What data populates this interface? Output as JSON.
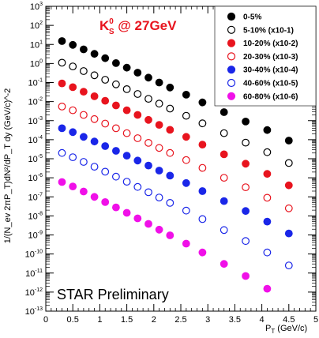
{
  "chart_data": {
    "type": "scatter",
    "title": "K0S @ 27GeV",
    "title_parts": {
      "main": "K",
      "sup": "0",
      "sub": "S",
      "rest": " @ 27GeV"
    },
    "annotation": "STAR Preliminary",
    "xlabel": {
      "main": "P",
      "sub": "T",
      "rest": " (GeV/c)"
    },
    "ylabel": "1/(N_ev 2πP_T)dN²/dP_T dy (GeV/c)^-2",
    "xlim": [
      0,
      5
    ],
    "ylim_log10": [
      -13,
      3
    ],
    "log_y": true,
    "legend_placement": "top-right",
    "x_ticks": [
      "0",
      "0.5",
      "1",
      "1.5",
      "2",
      "2.5",
      "3",
      "3.5",
      "4",
      "4.5",
      "5"
    ],
    "y_tick_exponents": [
      "3",
      "2",
      "1",
      "0",
      "-1",
      "-2",
      "-3",
      "-4",
      "-5",
      "-6",
      "-7",
      "-8",
      "-9",
      "-10",
      "-11",
      "-12",
      "-13"
    ],
    "series": [
      {
        "name": "0-5%",
        "color": "#000000",
        "filled": true,
        "x": [
          0.3,
          0.5,
          0.7,
          0.9,
          1.1,
          1.3,
          1.5,
          1.7,
          1.9,
          2.1,
          2.3,
          2.6,
          2.9,
          3.3,
          3.7,
          4.1,
          4.5
        ],
        "y": [
          15,
          9.5,
          5.5,
          3.2,
          1.9,
          1.05,
          0.6,
          0.33,
          0.18,
          0.1,
          0.055,
          0.023,
          0.009,
          0.0028,
          0.0009,
          0.00032,
          9e-05
        ]
      },
      {
        "name": "5-10% (x10-1)",
        "color": "#000000",
        "filled": false,
        "x": [
          0.3,
          0.5,
          0.7,
          0.9,
          1.1,
          1.3,
          1.5,
          1.7,
          1.9,
          2.1,
          2.3,
          2.6,
          2.9,
          3.3,
          3.7,
          4.1,
          4.5
        ],
        "y": [
          1.1,
          0.7,
          0.4,
          0.24,
          0.14,
          0.08,
          0.045,
          0.025,
          0.014,
          0.0078,
          0.0043,
          0.0018,
          0.00072,
          0.00022,
          7e-05,
          2.2e-05,
          6e-06
        ]
      },
      {
        "name": "10-20% (x10-2)",
        "color": "#e8141e",
        "filled": true,
        "x": [
          0.3,
          0.5,
          0.7,
          0.9,
          1.1,
          1.3,
          1.5,
          1.7,
          1.9,
          2.1,
          2.3,
          2.6,
          2.9,
          3.3,
          3.7,
          4.1,
          4.5
        ],
        "y": [
          0.09,
          0.057,
          0.033,
          0.019,
          0.011,
          0.0063,
          0.0035,
          0.002,
          0.0011,
          0.0006,
          0.00033,
          0.00014,
          5.5e-05,
          1.7e-05,
          5.5e-06,
          1.6e-06,
          4e-07
        ]
      },
      {
        "name": "20-30% (x10-3)",
        "color": "#e8141e",
        "filled": false,
        "x": [
          0.3,
          0.5,
          0.7,
          0.9,
          1.1,
          1.3,
          1.5,
          1.7,
          1.9,
          2.1,
          2.3,
          2.6,
          2.9,
          3.3,
          3.7,
          4.1,
          4.5
        ],
        "y": [
          0.0055,
          0.0035,
          0.002,
          0.0012,
          0.0007,
          0.0004,
          0.00022,
          0.00012,
          6.8e-05,
          3.7e-05,
          2e-05,
          8.5e-06,
          3.3e-06,
          1e-06,
          3.2e-07,
          9e-08,
          2.5e-08
        ]
      },
      {
        "name": "30-40% (x10-4)",
        "color": "#1a26e8",
        "filled": true,
        "x": [
          0.3,
          0.5,
          0.7,
          0.9,
          1.1,
          1.3,
          1.5,
          1.7,
          1.9,
          2.1,
          2.3,
          2.6,
          2.9,
          3.3,
          3.7,
          4.1,
          4.5
        ],
        "y": [
          0.0004,
          0.00025,
          0.00014,
          8e-05,
          4.6e-05,
          2.6e-05,
          1.45e-05,
          8e-06,
          4.4e-06,
          2.4e-06,
          1.3e-06,
          5.3e-07,
          2e-07,
          6e-08,
          1.8e-08,
          5e-09,
          1.2e-09
        ]
      },
      {
        "name": "40-60% (x10-5)",
        "color": "#1a26e8",
        "filled": false,
        "x": [
          0.3,
          0.5,
          0.7,
          0.9,
          1.1,
          1.3,
          1.5,
          1.7,
          1.9,
          2.1,
          2.3,
          2.6,
          2.9,
          3.3,
          3.7,
          4.1,
          4.5
        ],
        "y": [
          2e-05,
          1.2e-05,
          6.8e-06,
          3.8e-06,
          2.1e-06,
          1.15e-06,
          6.2e-07,
          3.3e-07,
          1.75e-07,
          9.2e-08,
          4.8e-08,
          1.9e-08,
          6.8e-09,
          1.8e-09,
          4.8e-10,
          1.2e-10,
          2.5e-11
        ]
      },
      {
        "name": "60-80% (x10-6)",
        "color": "#f010e8",
        "filled": true,
        "x": [
          0.3,
          0.5,
          0.7,
          0.9,
          1.1,
          1.3,
          1.5,
          1.7,
          1.9,
          2.1,
          2.3,
          2.6,
          2.9,
          3.3,
          3.7,
          4.1
        ],
        "y": [
          6e-07,
          3.5e-07,
          1.9e-07,
          1e-07,
          5.3e-08,
          2.8e-08,
          1.45e-08,
          7.4e-09,
          3.8e-09,
          1.9e-09,
          9.5e-10,
          3.5e-10,
          1.2e-10,
          3e-11,
          7e-12,
          1.5e-12
        ]
      }
    ]
  }
}
